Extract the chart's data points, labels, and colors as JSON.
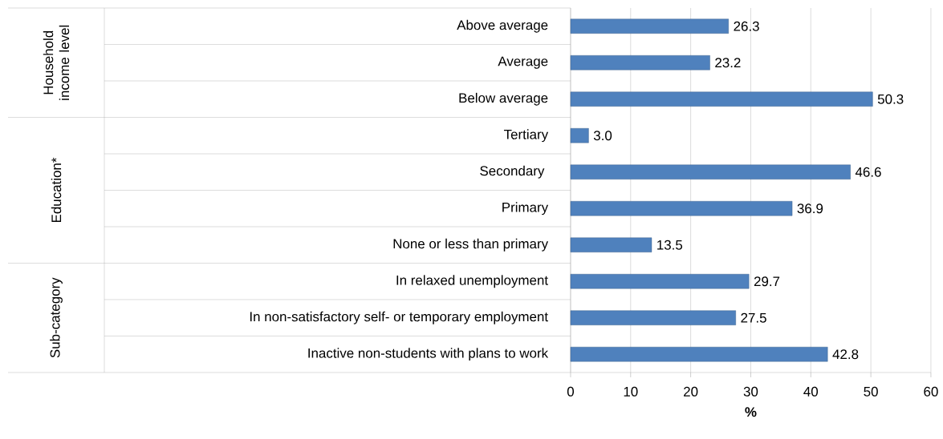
{
  "chart_data": {
    "type": "bar",
    "orientation": "horizontal",
    "categories": [
      "Above average",
      "Average",
      "Below  average",
      "Tertiary",
      "Secondary ",
      "Primary",
      "None or less than primary",
      "In relaxed unemployment",
      "In non-satisfactory self- or temporary employment",
      "Inactive non-students with plans to work"
    ],
    "values": [
      26.3,
      23.2,
      50.3,
      3.0,
      46.6,
      36.9,
      13.5,
      29.7,
      27.5,
      42.8
    ],
    "value_labels": [
      "26.3",
      "23.2",
      "50.3",
      "3.0",
      "46.6",
      "36.9",
      "13.5",
      "29.7",
      "27.5",
      "42.8"
    ],
    "color": "#4f81bd",
    "xlim": [
      0,
      60
    ],
    "xticks": [
      0,
      10,
      20,
      30,
      40,
      50,
      60
    ],
    "xlabel": "%",
    "grid": "x",
    "annotations": [
      "Household income level",
      "Education*",
      "Sub-category"
    ]
  }
}
